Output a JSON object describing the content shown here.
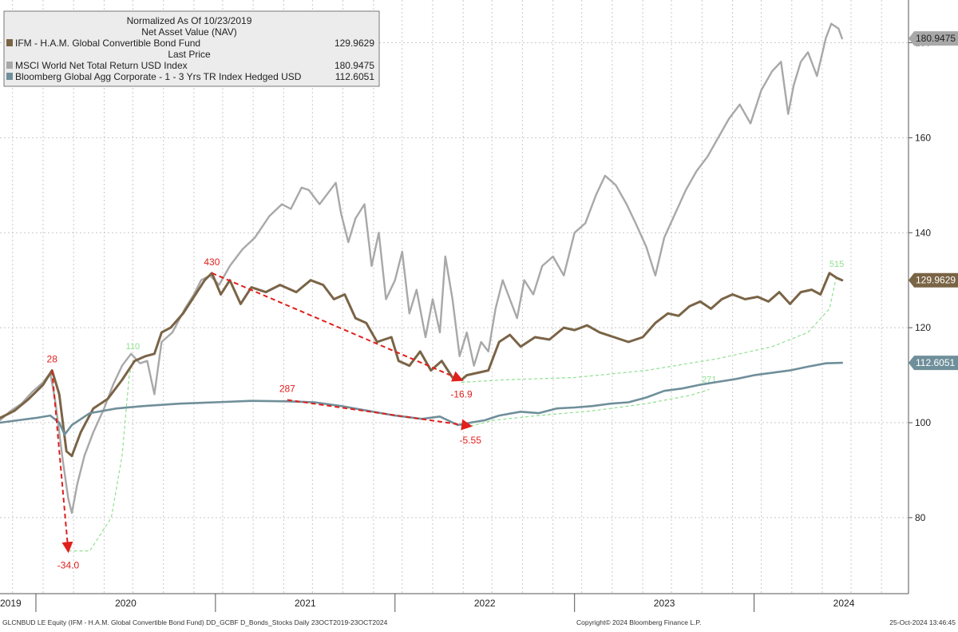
{
  "chart_data": {
    "type": "line",
    "legend": {
      "header_line1": "Normalized As Of 10/23/2019",
      "header_line2": "Net Asset Value (NAV)",
      "entries": [
        {
          "label": "IFM - H.A.M. Global Convertible Bond Fund",
          "value": "129.9629",
          "sublabel": "Last Price",
          "color": "#7a6446"
        },
        {
          "label": "MSCI World Net Total Return USD Index",
          "value": "180.9475",
          "color": "#a8a8a8"
        },
        {
          "label": "Bloomberg Global Agg Corporate - 1 - 3 Yrs TR Index Hedged USD",
          "value": "112.6051",
          "color": "#6f8f9a"
        }
      ],
      "placement": "top-left"
    },
    "x_domain": [
      2019.8,
      2024.86
    ],
    "x_ticks": [
      {
        "label": "2019",
        "x": 2019.8
      },
      {
        "label": "2020",
        "x": 2020.5
      },
      {
        "label": "2021",
        "x": 2021.5
      },
      {
        "label": "2022",
        "x": 2022.5
      },
      {
        "label": "2023",
        "x": 2023.5
      },
      {
        "label": "2024",
        "x": 2024.5
      }
    ],
    "year_dividers": [
      2020.0,
      2021.0,
      2022.0,
      2023.0,
      2024.0
    ],
    "x_gridlines": [
      2019.87,
      2020.04,
      2020.21,
      2020.38,
      2020.54,
      2020.71,
      2020.88,
      2021.04,
      2021.21,
      2021.38,
      2021.54,
      2021.71,
      2021.88,
      2022.04,
      2022.21,
      2022.38,
      2022.54,
      2022.71,
      2022.88,
      2023.04,
      2023.21,
      2023.38,
      2023.54,
      2023.71,
      2023.88,
      2024.04,
      2024.21,
      2024.38,
      2024.54,
      2024.71
    ],
    "y_domain": [
      64,
      189
    ],
    "y_ticks": [
      80,
      100,
      120,
      140,
      160,
      180
    ],
    "y_tick_labels": [
      "80",
      "100",
      "120",
      "140",
      "160",
      "180"
    ],
    "series": [
      {
        "name": "MSCI World Net Total Return USD Index",
        "color": "#a8a8a8",
        "width": 2.4,
        "last_label": "180.9475",
        "points": [
          [
            2019.8,
            100.5
          ],
          [
            2019.86,
            102.5
          ],
          [
            2019.92,
            104
          ],
          [
            2019.98,
            106.5
          ],
          [
            2020.04,
            108.5
          ],
          [
            2020.08,
            110.5
          ],
          [
            2020.11,
            104
          ],
          [
            2020.15,
            92
          ],
          [
            2020.18,
            84
          ],
          [
            2020.2,
            81
          ],
          [
            2020.23,
            87
          ],
          [
            2020.27,
            93
          ],
          [
            2020.32,
            98
          ],
          [
            2020.38,
            103
          ],
          [
            2020.43,
            108
          ],
          [
            2020.48,
            112
          ],
          [
            2020.53,
            114.5
          ],
          [
            2020.58,
            112.5
          ],
          [
            2020.62,
            113
          ],
          [
            2020.66,
            106
          ],
          [
            2020.7,
            117
          ],
          [
            2020.76,
            119
          ],
          [
            2020.83,
            124
          ],
          [
            2020.88,
            127
          ],
          [
            2020.92,
            130
          ],
          [
            2020.97,
            131
          ],
          [
            2021.02,
            129
          ],
          [
            2021.08,
            133
          ],
          [
            2021.15,
            136.5
          ],
          [
            2021.22,
            139
          ],
          [
            2021.3,
            143.5
          ],
          [
            2021.37,
            146
          ],
          [
            2021.42,
            145
          ],
          [
            2021.48,
            149.5
          ],
          [
            2021.52,
            149
          ],
          [
            2021.58,
            146
          ],
          [
            2021.62,
            148
          ],
          [
            2021.67,
            150.5
          ],
          [
            2021.7,
            144
          ],
          [
            2021.74,
            138
          ],
          [
            2021.78,
            143
          ],
          [
            2021.83,
            146
          ],
          [
            2021.87,
            133
          ],
          [
            2021.91,
            140
          ],
          [
            2021.95,
            126
          ],
          [
            2022.0,
            130
          ],
          [
            2022.04,
            136
          ],
          [
            2022.08,
            123
          ],
          [
            2022.12,
            128
          ],
          [
            2022.17,
            118
          ],
          [
            2022.21,
            126
          ],
          [
            2022.25,
            119
          ],
          [
            2022.28,
            135
          ],
          [
            2022.32,
            126
          ],
          [
            2022.36,
            114
          ],
          [
            2022.4,
            119
          ],
          [
            2022.44,
            112
          ],
          [
            2022.48,
            117
          ],
          [
            2022.52,
            115
          ],
          [
            2022.56,
            124
          ],
          [
            2022.6,
            130
          ],
          [
            2022.64,
            126
          ],
          [
            2022.68,
            122
          ],
          [
            2022.72,
            130
          ],
          [
            2022.77,
            127
          ],
          [
            2022.82,
            133
          ],
          [
            2022.88,
            135
          ],
          [
            2022.94,
            131
          ],
          [
            2023.0,
            140
          ],
          [
            2023.06,
            142
          ],
          [
            2023.12,
            148
          ],
          [
            2023.17,
            152
          ],
          [
            2023.23,
            150
          ],
          [
            2023.29,
            146
          ],
          [
            2023.34,
            142
          ],
          [
            2023.4,
            137
          ],
          [
            2023.45,
            131
          ],
          [
            2023.5,
            139
          ],
          [
            2023.56,
            144
          ],
          [
            2023.62,
            149
          ],
          [
            2023.68,
            153
          ],
          [
            2023.74,
            156
          ],
          [
            2023.8,
            160
          ],
          [
            2023.86,
            164
          ],
          [
            2023.92,
            167
          ],
          [
            2023.98,
            163
          ],
          [
            2024.04,
            170
          ],
          [
            2024.1,
            174
          ],
          [
            2024.15,
            176
          ],
          [
            2024.19,
            165
          ],
          [
            2024.22,
            171
          ],
          [
            2024.26,
            176
          ],
          [
            2024.3,
            178
          ],
          [
            2024.35,
            173
          ],
          [
            2024.4,
            181
          ],
          [
            2024.43,
            184
          ],
          [
            2024.47,
            183
          ],
          [
            2024.49,
            180.9
          ]
        ]
      },
      {
        "name": "IFM - H.A.M. Global Convertible Bond Fund",
        "color": "#7a6446",
        "width": 3,
        "last_label": "129.9629",
        "points": [
          [
            2019.8,
            101
          ],
          [
            2019.88,
            102.5
          ],
          [
            2019.96,
            105
          ],
          [
            2020.04,
            108
          ],
          [
            2020.09,
            111
          ],
          [
            2020.13,
            106
          ],
          [
            2020.17,
            94
          ],
          [
            2020.2,
            93
          ],
          [
            2020.25,
            98
          ],
          [
            2020.32,
            103
          ],
          [
            2020.4,
            105
          ],
          [
            2020.48,
            109
          ],
          [
            2020.55,
            113
          ],
          [
            2020.61,
            114
          ],
          [
            2020.66,
            114.5
          ],
          [
            2020.7,
            119
          ],
          [
            2020.75,
            120
          ],
          [
            2020.82,
            123
          ],
          [
            2020.88,
            126.5
          ],
          [
            2020.94,
            130
          ],
          [
            2020.98,
            131.5
          ],
          [
            2021.03,
            127
          ],
          [
            2021.08,
            130
          ],
          [
            2021.14,
            125
          ],
          [
            2021.2,
            128.5
          ],
          [
            2021.28,
            127.5
          ],
          [
            2021.36,
            129
          ],
          [
            2021.45,
            127.5
          ],
          [
            2021.53,
            130
          ],
          [
            2021.6,
            129
          ],
          [
            2021.66,
            126
          ],
          [
            2021.72,
            127
          ],
          [
            2021.78,
            122
          ],
          [
            2021.84,
            121
          ],
          [
            2021.9,
            117
          ],
          [
            2021.98,
            118
          ],
          [
            2022.02,
            113
          ],
          [
            2022.08,
            112
          ],
          [
            2022.14,
            115
          ],
          [
            2022.2,
            111
          ],
          [
            2022.26,
            113
          ],
          [
            2022.32,
            109.5
          ],
          [
            2022.37,
            109
          ],
          [
            2022.4,
            110
          ],
          [
            2022.46,
            110.5
          ],
          [
            2022.52,
            111
          ],
          [
            2022.58,
            117
          ],
          [
            2022.64,
            118.5
          ],
          [
            2022.7,
            116
          ],
          [
            2022.78,
            118
          ],
          [
            2022.86,
            117.5
          ],
          [
            2022.94,
            120
          ],
          [
            2023.0,
            119.5
          ],
          [
            2023.07,
            120.5
          ],
          [
            2023.14,
            119
          ],
          [
            2023.22,
            118
          ],
          [
            2023.3,
            117
          ],
          [
            2023.38,
            118
          ],
          [
            2023.45,
            121
          ],
          [
            2023.52,
            123
          ],
          [
            2023.58,
            122.5
          ],
          [
            2023.64,
            124.5
          ],
          [
            2023.7,
            125.5
          ],
          [
            2023.76,
            124
          ],
          [
            2023.82,
            126
          ],
          [
            2023.88,
            127
          ],
          [
            2023.95,
            126
          ],
          [
            2024.02,
            126.5
          ],
          [
            2024.08,
            125.5
          ],
          [
            2024.14,
            127.5
          ],
          [
            2024.2,
            125
          ],
          [
            2024.26,
            127.5
          ],
          [
            2024.32,
            128
          ],
          [
            2024.37,
            127
          ],
          [
            2024.42,
            131.5
          ],
          [
            2024.46,
            130.5
          ],
          [
            2024.49,
            130
          ]
        ]
      },
      {
        "name": "Bloomberg Global Agg Corporate - 1 - 3 Yrs TR Index Hedged USD",
        "color": "#6f8f9a",
        "width": 2.6,
        "last_label": "112.6051",
        "points": [
          [
            2019.8,
            100
          ],
          [
            2019.9,
            100.5
          ],
          [
            2020.0,
            101
          ],
          [
            2020.08,
            101.5
          ],
          [
            2020.13,
            100
          ],
          [
            2020.16,
            97.5
          ],
          [
            2020.2,
            99.5
          ],
          [
            2020.3,
            102
          ],
          [
            2020.45,
            103
          ],
          [
            2020.6,
            103.5
          ],
          [
            2020.8,
            104
          ],
          [
            2021.0,
            104.3
          ],
          [
            2021.2,
            104.6
          ],
          [
            2021.4,
            104.5
          ],
          [
            2021.55,
            104.3
          ],
          [
            2021.7,
            103.5
          ],
          [
            2021.85,
            102.5
          ],
          [
            2022.0,
            101.5
          ],
          [
            2022.15,
            100.8
          ],
          [
            2022.25,
            101.3
          ],
          [
            2022.35,
            99.5
          ],
          [
            2022.42,
            100
          ],
          [
            2022.5,
            100.5
          ],
          [
            2022.58,
            101.5
          ],
          [
            2022.7,
            102.3
          ],
          [
            2022.8,
            102
          ],
          [
            2022.9,
            103
          ],
          [
            2023.0,
            103.2
          ],
          [
            2023.1,
            103.5
          ],
          [
            2023.2,
            104
          ],
          [
            2023.3,
            104.3
          ],
          [
            2023.4,
            105.3
          ],
          [
            2023.5,
            106.7
          ],
          [
            2023.6,
            107.2
          ],
          [
            2023.7,
            108
          ],
          [
            2023.8,
            108.6
          ],
          [
            2023.9,
            109.2
          ],
          [
            2024.0,
            110
          ],
          [
            2024.1,
            110.5
          ],
          [
            2024.2,
            111
          ],
          [
            2024.3,
            111.8
          ],
          [
            2024.4,
            112.5
          ],
          [
            2024.49,
            112.6
          ]
        ]
      }
    ],
    "drawdowns": [
      {
        "from": [
          2020.09,
          111
        ],
        "to": [
          2020.18,
          73
        ],
        "start_label": "28",
        "end_label": "-34.0"
      },
      {
        "from": [
          2020.98,
          131.5
        ],
        "to": [
          2022.37,
          109
        ],
        "start_label": "430",
        "end_label": "-16.9"
      },
      {
        "from": [
          2021.4,
          104.8
        ],
        "to": [
          2022.42,
          99.3
        ],
        "start_label": "287",
        "end_label": "-5.55"
      }
    ],
    "recoveries": [
      {
        "points": [
          [
            2020.18,
            73
          ],
          [
            2020.3,
            73
          ],
          [
            2020.42,
            80
          ],
          [
            2020.48,
            93
          ],
          [
            2020.52,
            110
          ],
          [
            2020.54,
            113
          ]
        ],
        "label": "110",
        "label_at": [
          2020.54,
          115.5
        ]
      },
      {
        "points": [
          [
            2022.37,
            108.5
          ],
          [
            2022.6,
            109
          ],
          [
            2023.0,
            109.5
          ],
          [
            2023.4,
            111
          ],
          [
            2023.8,
            113.5
          ],
          [
            2024.1,
            116
          ],
          [
            2024.3,
            119
          ],
          [
            2024.42,
            124
          ],
          [
            2024.46,
            131
          ]
        ],
        "label": "515",
        "label_at": [
          2024.46,
          132.8
        ]
      },
      {
        "points": [
          [
            2022.42,
            99.3
          ],
          [
            2022.55,
            100.5
          ],
          [
            2022.8,
            101.5
          ],
          [
            2023.1,
            102.5
          ],
          [
            2023.4,
            104
          ],
          [
            2023.65,
            105.8
          ],
          [
            2023.75,
            107
          ]
        ],
        "label": "271",
        "label_at": [
          2023.75,
          108.5
        ]
      }
    ],
    "footer": {
      "left": "GLCNBUD LE Equity (IFM - H.A.M. Global Convertible Bond Fund) DD_GCBF D_Bonds_Stocks  Daily 23OCT2019-23OCT2024",
      "center": "Copyright© 2024 Bloomberg Finance L.P.",
      "right": "25-Oct-2024 13:46:45"
    }
  }
}
